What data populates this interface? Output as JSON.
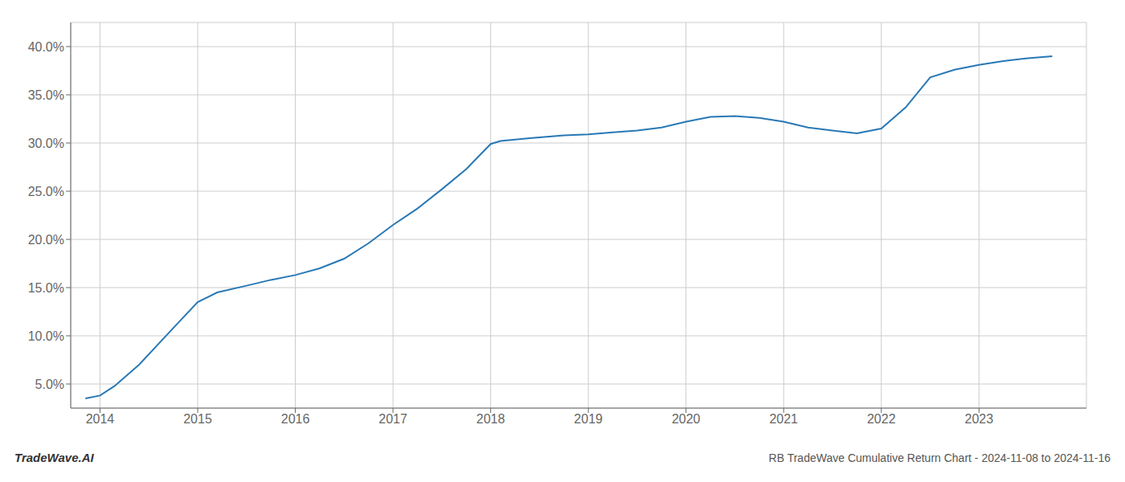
{
  "chart_data": {
    "type": "line",
    "title": "RB TradeWave Cumulative Return Chart - 2024-11-08 to 2024-11-16",
    "annotations": [
      "TradeWave.AI"
    ],
    "x": [
      2013.85,
      2014.0,
      2014.15,
      2014.4,
      2014.75,
      2015.0,
      2015.2,
      2015.5,
      2015.75,
      2016.0,
      2016.25,
      2016.5,
      2016.75,
      2017.0,
      2017.25,
      2017.5,
      2017.75,
      2018.0,
      2018.1,
      2018.4,
      2018.75,
      2019.0,
      2019.25,
      2019.5,
      2019.75,
      2020.0,
      2020.25,
      2020.5,
      2020.75,
      2021.0,
      2021.25,
      2021.5,
      2021.75,
      2022.0,
      2022.25,
      2022.5,
      2022.75,
      2023.0,
      2023.25,
      2023.5,
      2023.75
    ],
    "values": [
      0.035,
      0.038,
      0.048,
      0.07,
      0.108,
      0.135,
      0.145,
      0.152,
      0.158,
      0.163,
      0.17,
      0.18,
      0.196,
      0.215,
      0.232,
      0.252,
      0.273,
      0.299,
      0.302,
      0.305,
      0.308,
      0.309,
      0.311,
      0.313,
      0.316,
      0.322,
      0.327,
      0.328,
      0.326,
      0.322,
      0.316,
      0.313,
      0.31,
      0.315,
      0.337,
      0.368,
      0.376,
      0.381,
      0.385,
      0.388,
      0.39
    ],
    "color": "#2878b5",
    "xlim": [
      2013.7,
      2024.1
    ],
    "ylim": [
      0.025,
      0.425
    ],
    "xticks": [
      2014,
      2015,
      2016,
      2017,
      2018,
      2019,
      2020,
      2021,
      2022,
      2023
    ],
    "yticks": [
      {
        "value": 0.05,
        "label": "5.0%"
      },
      {
        "value": 0.1,
        "label": "10.0%"
      },
      {
        "value": 0.15,
        "label": "15.0%"
      },
      {
        "value": 0.2,
        "label": "20.0%"
      },
      {
        "value": 0.25,
        "label": "25.0%"
      },
      {
        "value": 0.3,
        "label": "30.0%"
      },
      {
        "value": 0.35,
        "label": "35.0%"
      },
      {
        "value": 0.4,
        "label": "40.0%"
      }
    ],
    "grid": true
  }
}
